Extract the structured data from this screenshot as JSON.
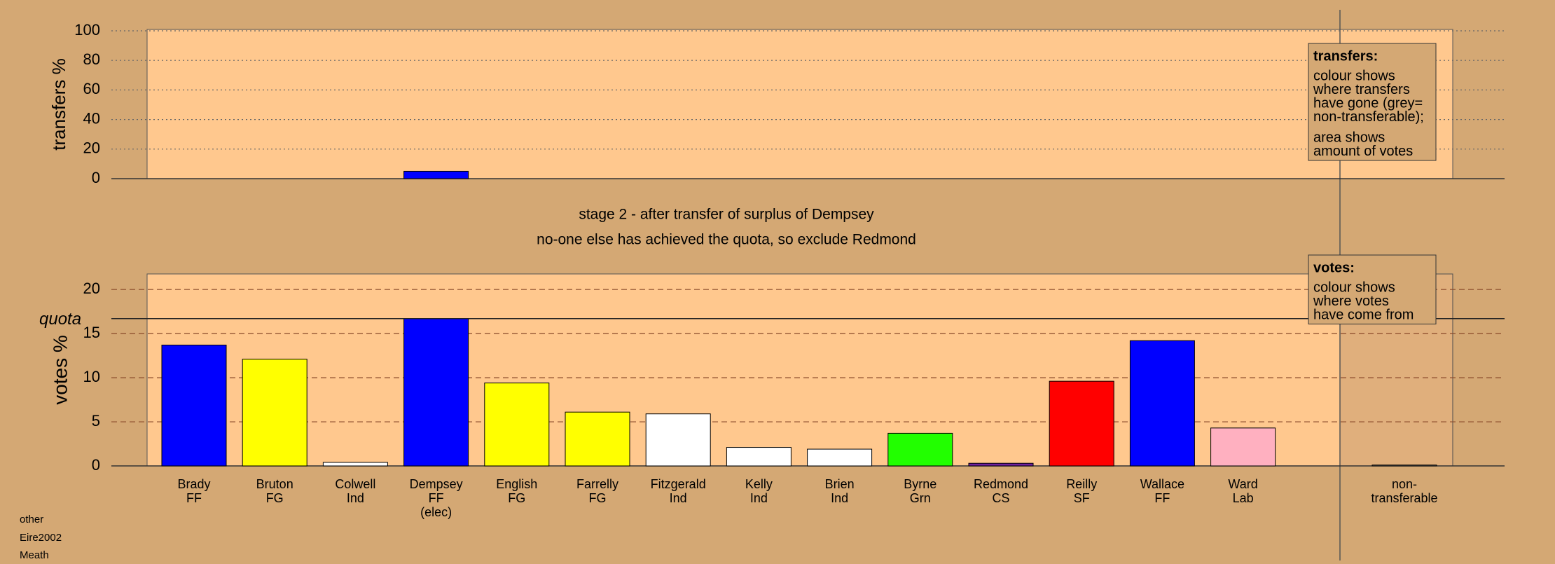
{
  "chart_data": [
    {
      "type": "bar",
      "y_label": "transfers %",
      "ylim": [
        0,
        100
      ],
      "yticks": [
        0,
        20,
        40,
        60,
        80,
        100
      ],
      "grid": true,
      "values": [
        null,
        null,
        null,
        5,
        null,
        null,
        null,
        null,
        null,
        null,
        null,
        null,
        null,
        null,
        null
      ],
      "color": "#0000ff",
      "legend": {
        "title": "transfers:",
        "lines": [
          "colour shows",
          "where transfers",
          "have gone (grey=",
          "non-transferable);",
          "area shows",
          "amount of votes"
        ]
      }
    },
    {
      "type": "bar",
      "y_label": "votes %",
      "ylim": [
        0,
        22
      ],
      "yticks": [
        0,
        5,
        10,
        15,
        20
      ],
      "grid": true,
      "subtitle": [
        "stage 2 - after transfer of surplus of Dempsey",
        "no-one else has achieved the quota, so exclude Redmond"
      ],
      "quota": {
        "label": "quota",
        "value": 16.7
      },
      "categories": [
        [
          "Brady",
          "FF"
        ],
        [
          "Bruton",
          "FG"
        ],
        [
          "Colwell",
          "Ind"
        ],
        [
          "Dempsey",
          "FF",
          "(elec)"
        ],
        [
          "English",
          "FG"
        ],
        [
          "Farrelly",
          "FG"
        ],
        [
          "Fitzgerald",
          "Ind"
        ],
        [
          "Kelly",
          "Ind"
        ],
        [
          "Brien",
          "Ind"
        ],
        [
          "Byrne",
          "Grn"
        ],
        [
          "Redmond",
          "CS"
        ],
        [
          "Reilly",
          "SF"
        ],
        [
          "Wallace",
          "FF"
        ],
        [
          "Ward",
          "Lab"
        ],
        [
          "non-",
          "transferable"
        ]
      ],
      "values": [
        13.7,
        12.1,
        0.4,
        16.7,
        9.4,
        6.1,
        5.9,
        2.1,
        1.9,
        3.7,
        0.3,
        9.6,
        14.2,
        4.3,
        0.1
      ],
      "colors": [
        "#0000ff",
        "#ffff00",
        "#ffffff",
        "#0000ff",
        "#ffff00",
        "#ffff00",
        "#ffffff",
        "#ffffff",
        "#ffffff",
        "#22ff00",
        "#7020a0",
        "#ff0000",
        "#0000ff",
        "#ffb0c0",
        "#888888"
      ],
      "legend": {
        "title": "votes:",
        "lines": [
          "colour shows",
          "where votes",
          "have come from"
        ]
      }
    }
  ],
  "footer": [
    "other",
    "Eire2002",
    "Meath"
  ]
}
